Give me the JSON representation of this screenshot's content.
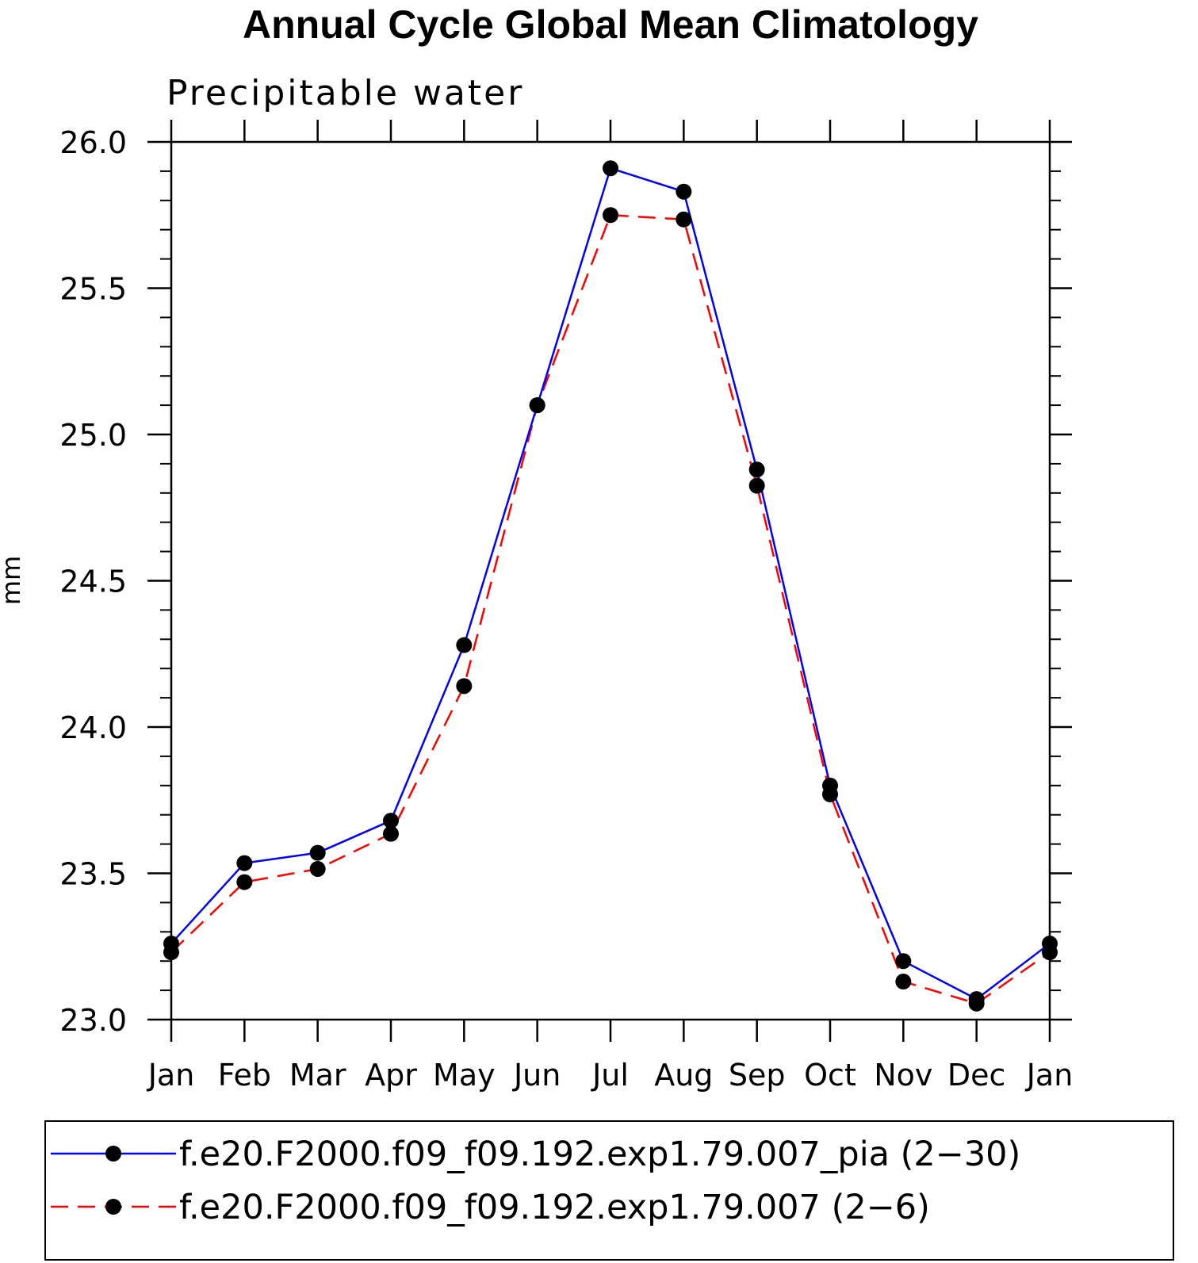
{
  "chart_data": {
    "type": "line",
    "title": "Annual Cycle Global Mean Climatology",
    "subtitle": "Precipitable water",
    "xlabel": "",
    "ylabel": "mm",
    "ylim": [
      23.0,
      26.0
    ],
    "yticks": [
      "23.0",
      "23.5",
      "24.0",
      "24.5",
      "25.0",
      "25.5",
      "26.0"
    ],
    "categories": [
      "Jan",
      "Feb",
      "Mar",
      "Apr",
      "May",
      "Jun",
      "Jul",
      "Aug",
      "Sep",
      "Oct",
      "Nov",
      "Dec",
      "Jan"
    ],
    "series": [
      {
        "name": "f.e20.F2000.f09_f09.192.exp1.79.007_pia (2−30)",
        "color": "#0000ff",
        "line_style": "solid",
        "marker": "circle",
        "values": [
          23.26,
          23.535,
          23.57,
          23.68,
          24.28,
          25.1,
          25.91,
          25.83,
          24.88,
          23.8,
          23.2,
          23.07,
          23.26
        ]
      },
      {
        "name": "f.e20.F2000.f09_f09.192.exp1.79.007 (2−6)",
        "color": "#ff0000",
        "line_style": "dashed",
        "marker": "circle",
        "values": [
          23.23,
          23.47,
          23.515,
          23.635,
          24.14,
          25.1,
          25.75,
          25.735,
          24.825,
          23.77,
          23.13,
          23.055,
          23.23
        ]
      }
    ],
    "legend_position": "bottom"
  }
}
